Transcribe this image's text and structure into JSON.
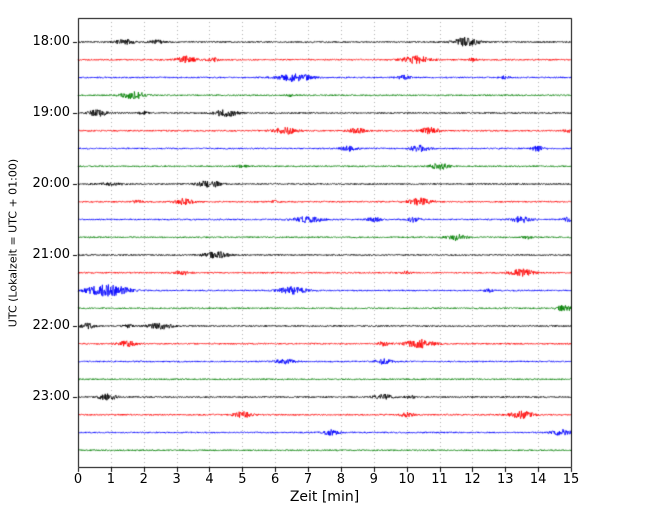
{
  "chart_data": {
    "type": "line",
    "subtype": "seismogram-helicorder-day-plot",
    "xlabel": "Zeit  [min]",
    "ylabel": "UTC (Lokalzeit = UTC + 01:00)",
    "xlim": [
      0,
      15
    ],
    "x_ticks": [
      "0",
      "1",
      "2",
      "3",
      "4",
      "5",
      "6",
      "7",
      "8",
      "9",
      "10",
      "11",
      "12",
      "13",
      "14",
      "15"
    ],
    "y_tick_labels": [
      "18:00",
      "19:00",
      "20:00",
      "21:00",
      "22:00",
      "23:00"
    ],
    "traces_per_hour": 4,
    "minutes_per_trace": 15,
    "grid": {
      "vertical_dotted": true,
      "color": "#b0b0b0"
    },
    "trace_colors": {
      "black": "#000000",
      "red": "#ff0000",
      "blue": "#0000ff",
      "green": "#008000"
    },
    "color_cycle": [
      "black",
      "red",
      "blue",
      "green"
    ],
    "noise_base_amplitude": 0.7,
    "traces": [
      {
        "row": 0,
        "color": "black",
        "events": [
          [
            1.4,
            2.5,
            0.2
          ],
          [
            2.4,
            1.8,
            0.15
          ],
          [
            11.8,
            4.5,
            0.25
          ]
        ]
      },
      {
        "row": 1,
        "color": "red",
        "events": [
          [
            3.3,
            3.5,
            0.2
          ],
          [
            4.1,
            2.0,
            0.12
          ],
          [
            10.3,
            3.5,
            0.3
          ],
          [
            12.0,
            1.5,
            0.1
          ]
        ]
      },
      {
        "row": 2,
        "color": "blue",
        "events": [
          [
            6.6,
            4.0,
            0.35
          ],
          [
            9.9,
            2.0,
            0.15
          ],
          [
            13.0,
            1.5,
            0.1
          ]
        ]
      },
      {
        "row": 3,
        "color": "green",
        "events": [
          [
            1.7,
            3.5,
            0.25
          ],
          [
            6.5,
            1.2,
            0.1
          ]
        ]
      },
      {
        "row": 4,
        "color": "black",
        "events": [
          [
            0.6,
            3.0,
            0.2
          ],
          [
            2.0,
            1.5,
            0.1
          ],
          [
            4.5,
            3.5,
            0.25
          ]
        ]
      },
      {
        "row": 5,
        "color": "red",
        "events": [
          [
            6.3,
            3.2,
            0.25
          ],
          [
            8.5,
            2.5,
            0.18
          ],
          [
            10.7,
            3.2,
            0.2
          ],
          [
            14.9,
            1.5,
            0.1
          ]
        ]
      },
      {
        "row": 6,
        "color": "blue",
        "events": [
          [
            8.2,
            2.5,
            0.18
          ],
          [
            10.4,
            3.0,
            0.2
          ],
          [
            14.0,
            2.5,
            0.15
          ]
        ]
      },
      {
        "row": 7,
        "color": "green",
        "events": [
          [
            11.0,
            3.2,
            0.2
          ],
          [
            5.0,
            1.2,
            0.1
          ]
        ]
      },
      {
        "row": 8,
        "color": "black",
        "events": [
          [
            4.0,
            3.5,
            0.25
          ],
          [
            1.0,
            1.2,
            0.3
          ]
        ]
      },
      {
        "row": 9,
        "color": "red",
        "events": [
          [
            1.8,
            1.3,
            0.1
          ],
          [
            3.2,
            3.0,
            0.2
          ],
          [
            10.4,
            3.5,
            0.25
          ],
          [
            6.0,
            1.2,
            0.1
          ]
        ]
      },
      {
        "row": 10,
        "color": "blue",
        "events": [
          [
            7.0,
            3.0,
            0.3
          ],
          [
            9.0,
            2.2,
            0.15
          ],
          [
            10.2,
            2.5,
            0.15
          ],
          [
            13.5,
            3.0,
            0.2
          ],
          [
            14.9,
            2.0,
            0.1
          ]
        ]
      },
      {
        "row": 11,
        "color": "green",
        "events": [
          [
            11.5,
            3.0,
            0.2
          ],
          [
            13.7,
            1.5,
            0.1
          ]
        ]
      },
      {
        "row": 12,
        "color": "black",
        "events": [
          [
            4.2,
            3.5,
            0.25
          ]
        ]
      },
      {
        "row": 13,
        "color": "red",
        "events": [
          [
            3.2,
            2.2,
            0.15
          ],
          [
            10.0,
            1.5,
            0.1
          ],
          [
            13.5,
            3.5,
            0.25
          ]
        ]
      },
      {
        "row": 14,
        "color": "blue",
        "events": [
          [
            0.9,
            5.5,
            0.45
          ],
          [
            6.5,
            3.5,
            0.3
          ],
          [
            12.5,
            1.5,
            0.1
          ]
        ]
      },
      {
        "row": 15,
        "color": "green",
        "events": [
          [
            14.8,
            2.8,
            0.18
          ]
        ]
      },
      {
        "row": 16,
        "color": "black",
        "events": [
          [
            0.3,
            2.5,
            0.15
          ],
          [
            1.5,
            1.5,
            0.1
          ],
          [
            2.5,
            3.0,
            0.25
          ]
        ]
      },
      {
        "row": 17,
        "color": "red",
        "events": [
          [
            1.5,
            2.8,
            0.2
          ],
          [
            9.3,
            2.0,
            0.12
          ],
          [
            10.4,
            4.0,
            0.3
          ]
        ]
      },
      {
        "row": 18,
        "color": "blue",
        "events": [
          [
            6.3,
            2.5,
            0.2
          ],
          [
            9.3,
            2.5,
            0.18
          ]
        ]
      },
      {
        "row": 19,
        "color": "green",
        "events": []
      },
      {
        "row": 20,
        "color": "black",
        "events": [
          [
            0.9,
            2.8,
            0.2
          ],
          [
            9.3,
            2.5,
            0.2
          ],
          [
            10.1,
            1.8,
            0.1
          ]
        ]
      },
      {
        "row": 21,
        "color": "red",
        "events": [
          [
            5.0,
            2.8,
            0.2
          ],
          [
            10.0,
            2.0,
            0.15
          ],
          [
            13.5,
            3.5,
            0.25
          ]
        ]
      },
      {
        "row": 22,
        "color": "blue",
        "events": [
          [
            7.7,
            2.5,
            0.18
          ],
          [
            14.7,
            3.0,
            0.2
          ]
        ]
      },
      {
        "row": 23,
        "color": "green",
        "events": []
      }
    ]
  }
}
